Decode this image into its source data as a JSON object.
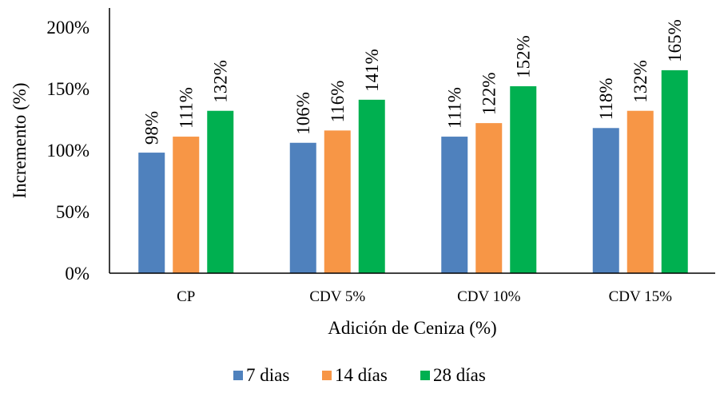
{
  "chart_data": {
    "type": "bar",
    "title": "",
    "xlabel": "Adición de Ceniza (%)",
    "ylabel": "Incremento  (%)",
    "categories": [
      "CP",
      "CDV 5%",
      "CDV 10%",
      "CDV 15%"
    ],
    "series": [
      {
        "name": "7 dias",
        "color": "#4F81BD",
        "values": [
          98,
          106,
          111,
          118
        ],
        "labels": [
          "98%",
          "106%",
          "111%",
          "118%"
        ]
      },
      {
        "name": "14 días",
        "color": "#F79646",
        "values": [
          111,
          116,
          122,
          132
        ],
        "labels": [
          "111%",
          "116%",
          "122%",
          "132%"
        ]
      },
      {
        "name": "28 días",
        "color": "#00B050",
        "values": [
          132,
          141,
          152,
          165
        ],
        "labels": [
          "132%",
          "141%",
          "152%",
          "165%"
        ]
      }
    ],
    "ylim": [
      0,
      200
    ],
    "yticks": [
      0,
      50,
      100,
      150,
      200
    ],
    "ytick_labels": [
      "0%",
      "50%",
      "100%",
      "150%",
      "200%"
    ],
    "grid": false,
    "legend_position": "bottom"
  }
}
